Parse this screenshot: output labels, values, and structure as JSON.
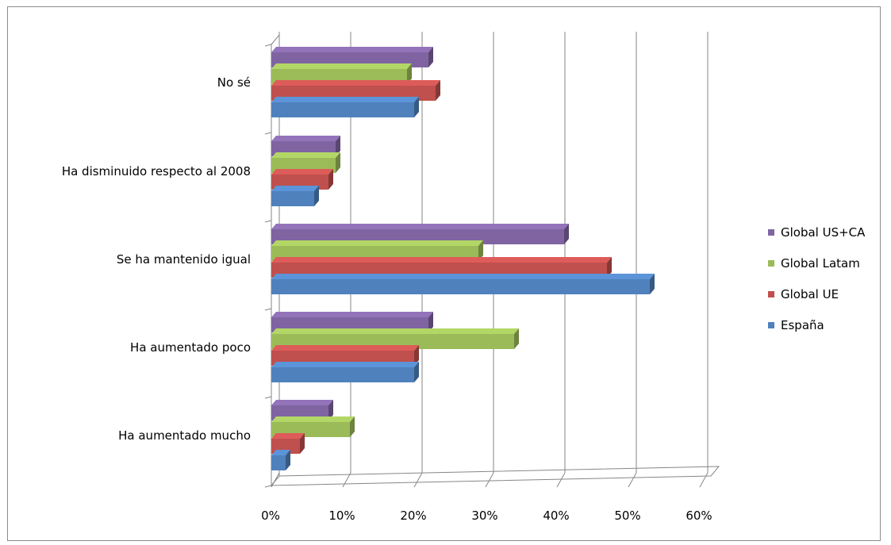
{
  "chart_data": {
    "type": "bar",
    "orientation": "horizontal",
    "style": "3d",
    "categories": [
      "No sé",
      "Ha disminuido respecto al 2008",
      "Se ha mantenido igual",
      "Ha aumentado poco",
      "Ha aumentado mucho"
    ],
    "series": [
      {
        "name": "Global US+CA",
        "color": "#8064a2",
        "values": [
          22,
          9,
          41,
          22,
          8
        ]
      },
      {
        "name": "Global Latam",
        "color": "#9bbb59",
        "values": [
          19,
          9,
          29,
          34,
          11
        ]
      },
      {
        "name": "Global UE",
        "color": "#c0504d",
        "values": [
          23,
          8,
          47,
          20,
          4
        ]
      },
      {
        "name": "España",
        "color": "#4f81bd",
        "values": [
          20,
          6,
          53,
          20,
          2
        ]
      }
    ],
    "xlim": [
      0,
      60
    ],
    "x_ticks": [
      "0%",
      "10%",
      "20%",
      "30%",
      "40%",
      "50%",
      "60%"
    ],
    "grid": "vertical",
    "legend_position": "right"
  }
}
